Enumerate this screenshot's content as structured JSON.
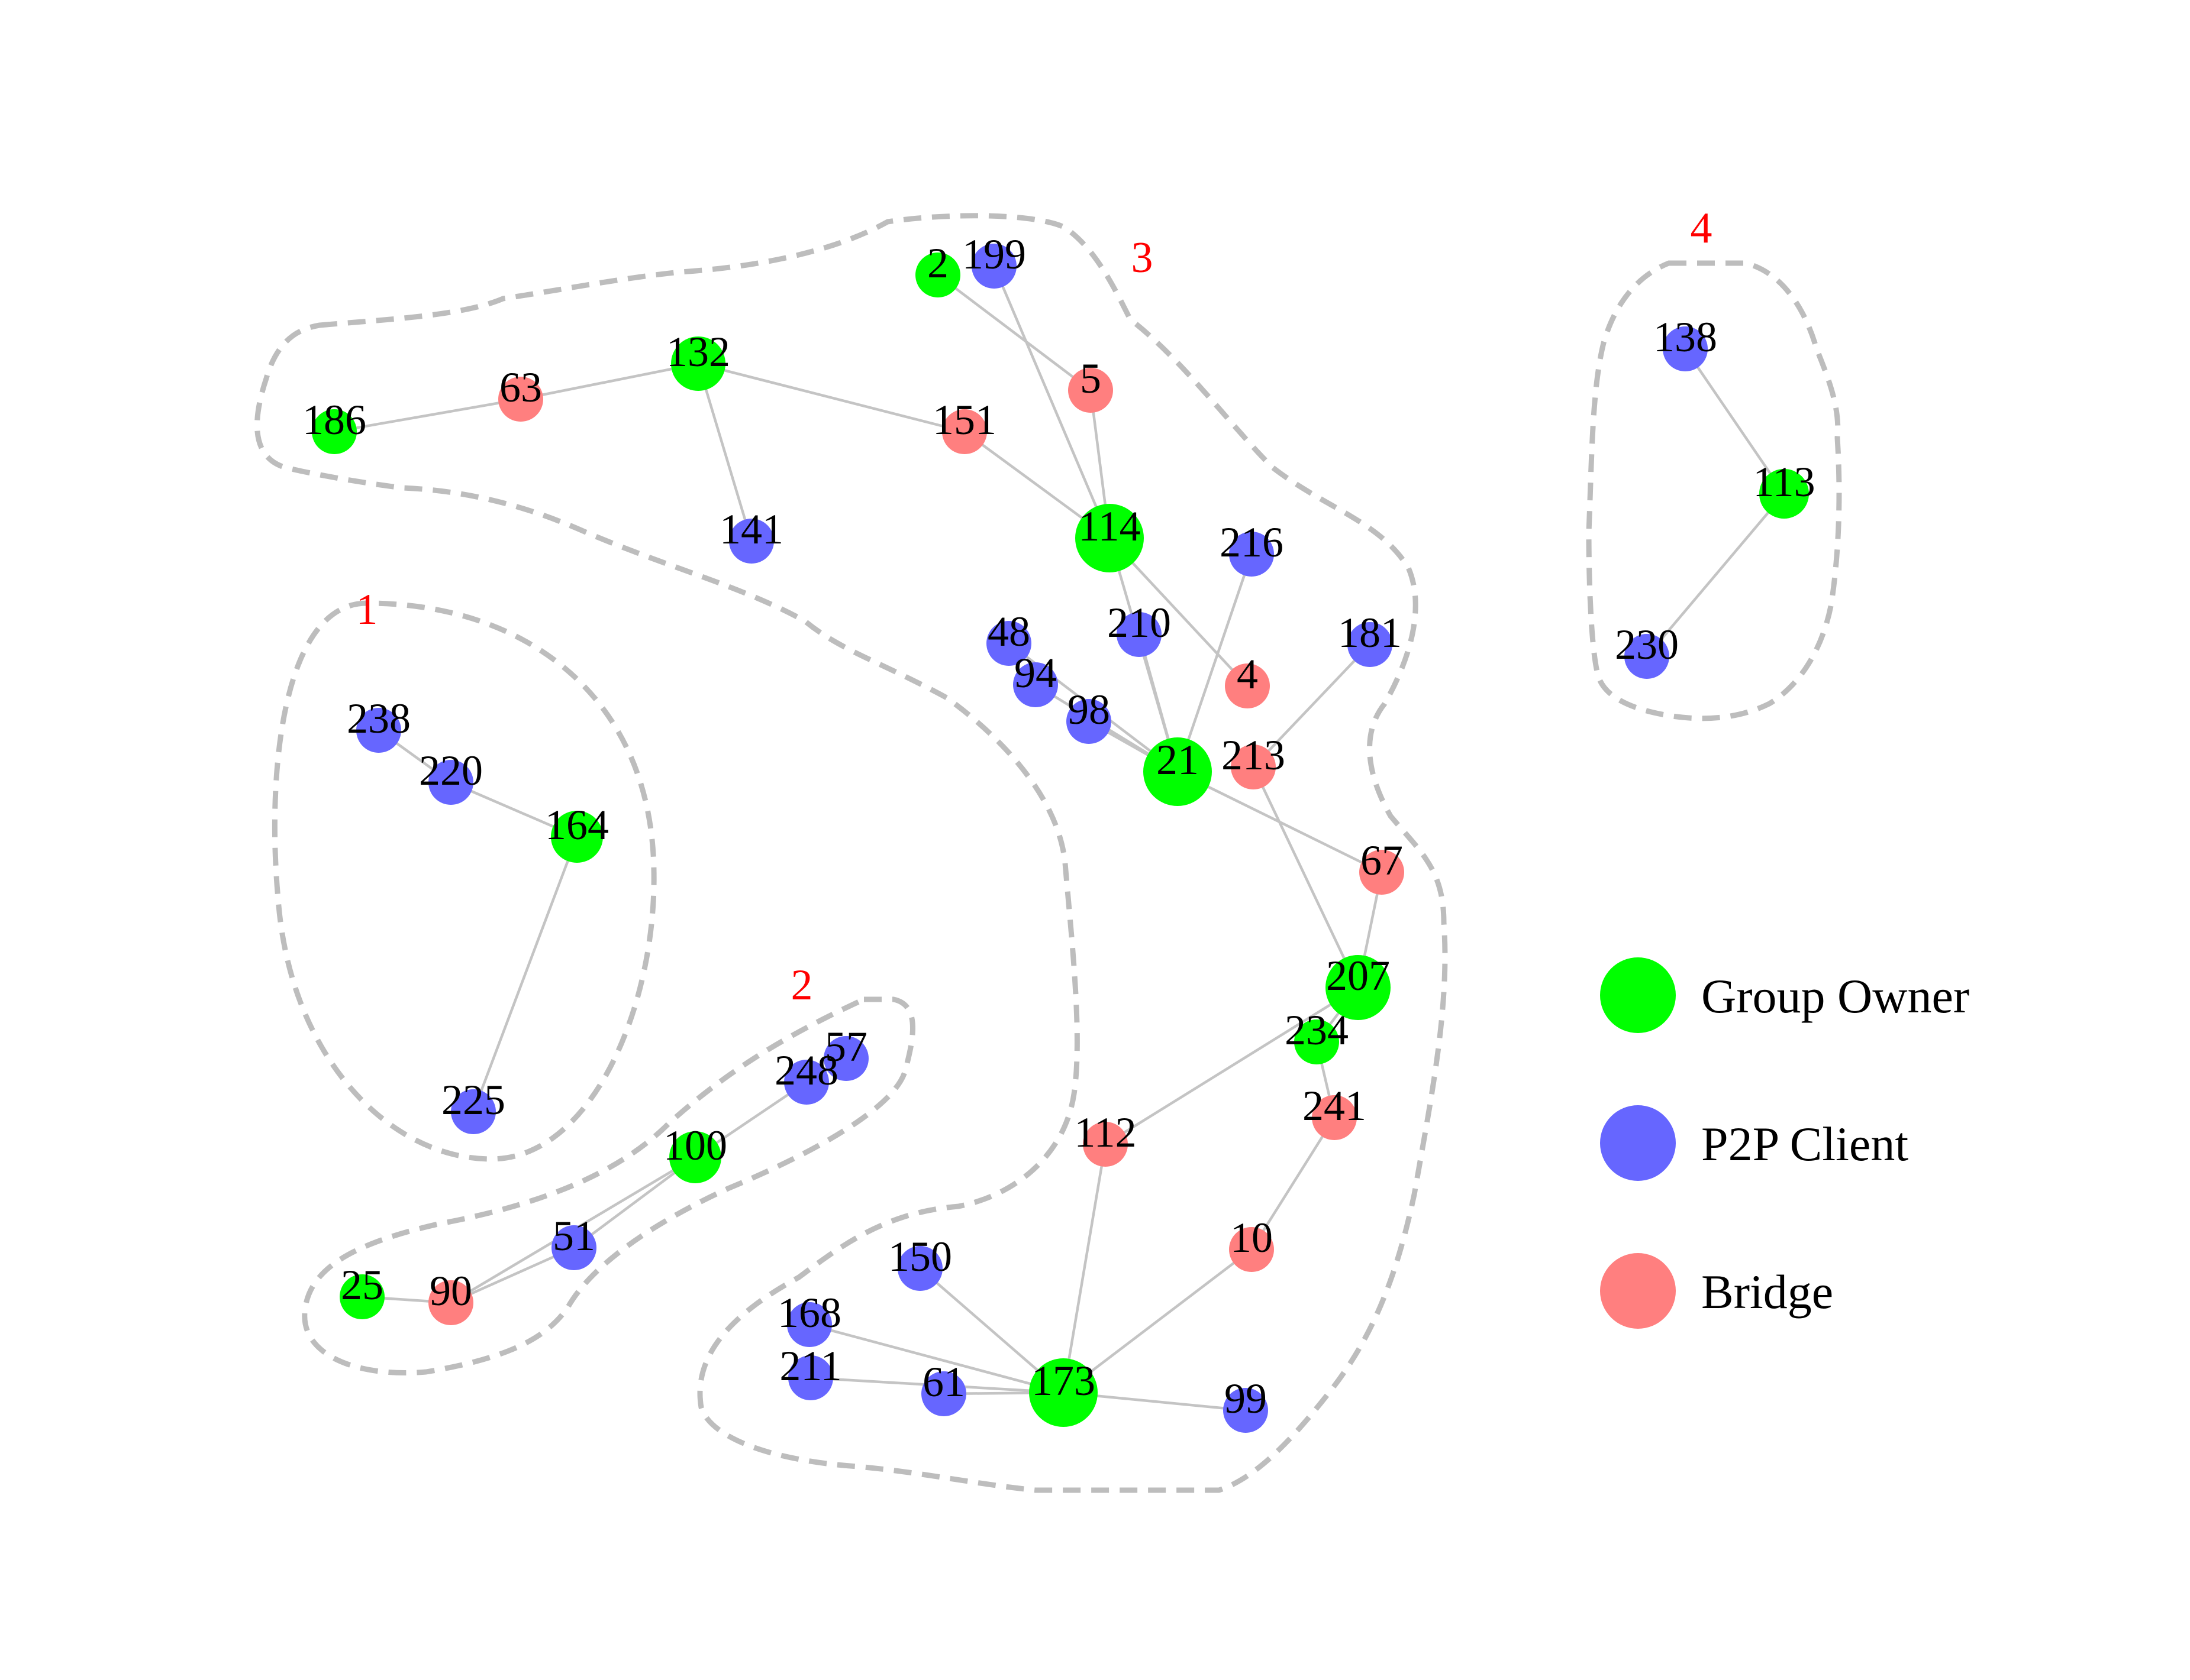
{
  "colors": {
    "group_owner": "#00ff00",
    "p2p_client": "#6666ff",
    "bridge": "#ff7f7f",
    "edge": "#c4c4c4",
    "hull": "#bdbdbd",
    "group_label": "#ff0000"
  },
  "groups": [
    {
      "id": "1",
      "label": "1"
    },
    {
      "id": "2",
      "label": "2"
    },
    {
      "id": "3",
      "label": "3"
    },
    {
      "id": "4",
      "label": "4"
    }
  ],
  "legend": [
    {
      "role": "group_owner",
      "label": "Group Owner"
    },
    {
      "role": "p2p_client",
      "label": "P2P Client"
    },
    {
      "role": "bridge",
      "label": "Bridge"
    }
  ],
  "nodes": [
    {
      "id": "186",
      "label": "186",
      "role": "group_owner"
    },
    {
      "id": "63",
      "label": "63",
      "role": "bridge"
    },
    {
      "id": "132",
      "label": "132",
      "role": "group_owner"
    },
    {
      "id": "141",
      "label": "141",
      "role": "p2p_client"
    },
    {
      "id": "151",
      "label": "151",
      "role": "bridge"
    },
    {
      "id": "2",
      "label": "2",
      "role": "group_owner"
    },
    {
      "id": "199",
      "label": "199",
      "role": "p2p_client"
    },
    {
      "id": "5",
      "label": "5",
      "role": "bridge"
    },
    {
      "id": "114",
      "label": "114",
      "role": "group_owner"
    },
    {
      "id": "216",
      "label": "216",
      "role": "p2p_client"
    },
    {
      "id": "210",
      "label": "210",
      "role": "p2p_client"
    },
    {
      "id": "181",
      "label": "181",
      "role": "p2p_client"
    },
    {
      "id": "48",
      "label": "48",
      "role": "p2p_client"
    },
    {
      "id": "94",
      "label": "94",
      "role": "p2p_client"
    },
    {
      "id": "98",
      "label": "98",
      "role": "p2p_client"
    },
    {
      "id": "4",
      "label": "4",
      "role": "bridge"
    },
    {
      "id": "21",
      "label": "21",
      "role": "group_owner"
    },
    {
      "id": "213",
      "label": "213",
      "role": "bridge"
    },
    {
      "id": "67",
      "label": "67",
      "role": "bridge"
    },
    {
      "id": "207",
      "label": "207",
      "role": "group_owner"
    },
    {
      "id": "234",
      "label": "234",
      "role": "group_owner"
    },
    {
      "id": "241",
      "label": "241",
      "role": "bridge"
    },
    {
      "id": "112",
      "label": "112",
      "role": "bridge"
    },
    {
      "id": "10",
      "label": "10",
      "role": "bridge"
    },
    {
      "id": "150",
      "label": "150",
      "role": "p2p_client"
    },
    {
      "id": "168",
      "label": "168",
      "role": "p2p_client"
    },
    {
      "id": "211",
      "label": "211",
      "role": "p2p_client"
    },
    {
      "id": "61",
      "label": "61",
      "role": "p2p_client"
    },
    {
      "id": "173",
      "label": "173",
      "role": "group_owner"
    },
    {
      "id": "99",
      "label": "99",
      "role": "p2p_client"
    },
    {
      "id": "238",
      "label": "238",
      "role": "p2p_client"
    },
    {
      "id": "220",
      "label": "220",
      "role": "p2p_client"
    },
    {
      "id": "164",
      "label": "164",
      "role": "group_owner"
    },
    {
      "id": "225",
      "label": "225",
      "role": "p2p_client"
    },
    {
      "id": "57",
      "label": "57",
      "role": "p2p_client"
    },
    {
      "id": "248",
      "label": "248",
      "role": "p2p_client"
    },
    {
      "id": "100",
      "label": "100",
      "role": "group_owner"
    },
    {
      "id": "51",
      "label": "51",
      "role": "p2p_client"
    },
    {
      "id": "25",
      "label": "25",
      "role": "group_owner"
    },
    {
      "id": "90",
      "label": "90",
      "role": "bridge"
    },
    {
      "id": "138",
      "label": "138",
      "role": "p2p_client"
    },
    {
      "id": "113",
      "label": "113",
      "role": "group_owner"
    },
    {
      "id": "230",
      "label": "230",
      "role": "p2p_client"
    }
  ],
  "edges": [
    [
      "186",
      "63"
    ],
    [
      "63",
      "132"
    ],
    [
      "132",
      "141"
    ],
    [
      "132",
      "151"
    ],
    [
      "151",
      "114"
    ],
    [
      "2",
      "5"
    ],
    [
      "199",
      "114"
    ],
    [
      "5",
      "114"
    ],
    [
      "114",
      "4"
    ],
    [
      "114",
      "21"
    ],
    [
      "216",
      "21"
    ],
    [
      "210",
      "21"
    ],
    [
      "181",
      "213"
    ],
    [
      "48",
      "21"
    ],
    [
      "94",
      "21"
    ],
    [
      "98",
      "21"
    ],
    [
      "21",
      "67"
    ],
    [
      "213",
      "207"
    ],
    [
      "67",
      "207"
    ],
    [
      "207",
      "112"
    ],
    [
      "207",
      "234"
    ],
    [
      "234",
      "241"
    ],
    [
      "241",
      "10"
    ],
    [
      "10",
      "173"
    ],
    [
      "112",
      "173"
    ],
    [
      "150",
      "173"
    ],
    [
      "168",
      "173"
    ],
    [
      "211",
      "173"
    ],
    [
      "61",
      "173"
    ],
    [
      "173",
      "99"
    ],
    [
      "238",
      "220"
    ],
    [
      "220",
      "164"
    ],
    [
      "164",
      "225"
    ],
    [
      "57",
      "248"
    ],
    [
      "248",
      "100"
    ],
    [
      "100",
      "51"
    ],
    [
      "100",
      "90"
    ],
    [
      "51",
      "90"
    ],
    [
      "25",
      "90"
    ],
    [
      "138",
      "113"
    ],
    [
      "113",
      "230"
    ]
  ]
}
